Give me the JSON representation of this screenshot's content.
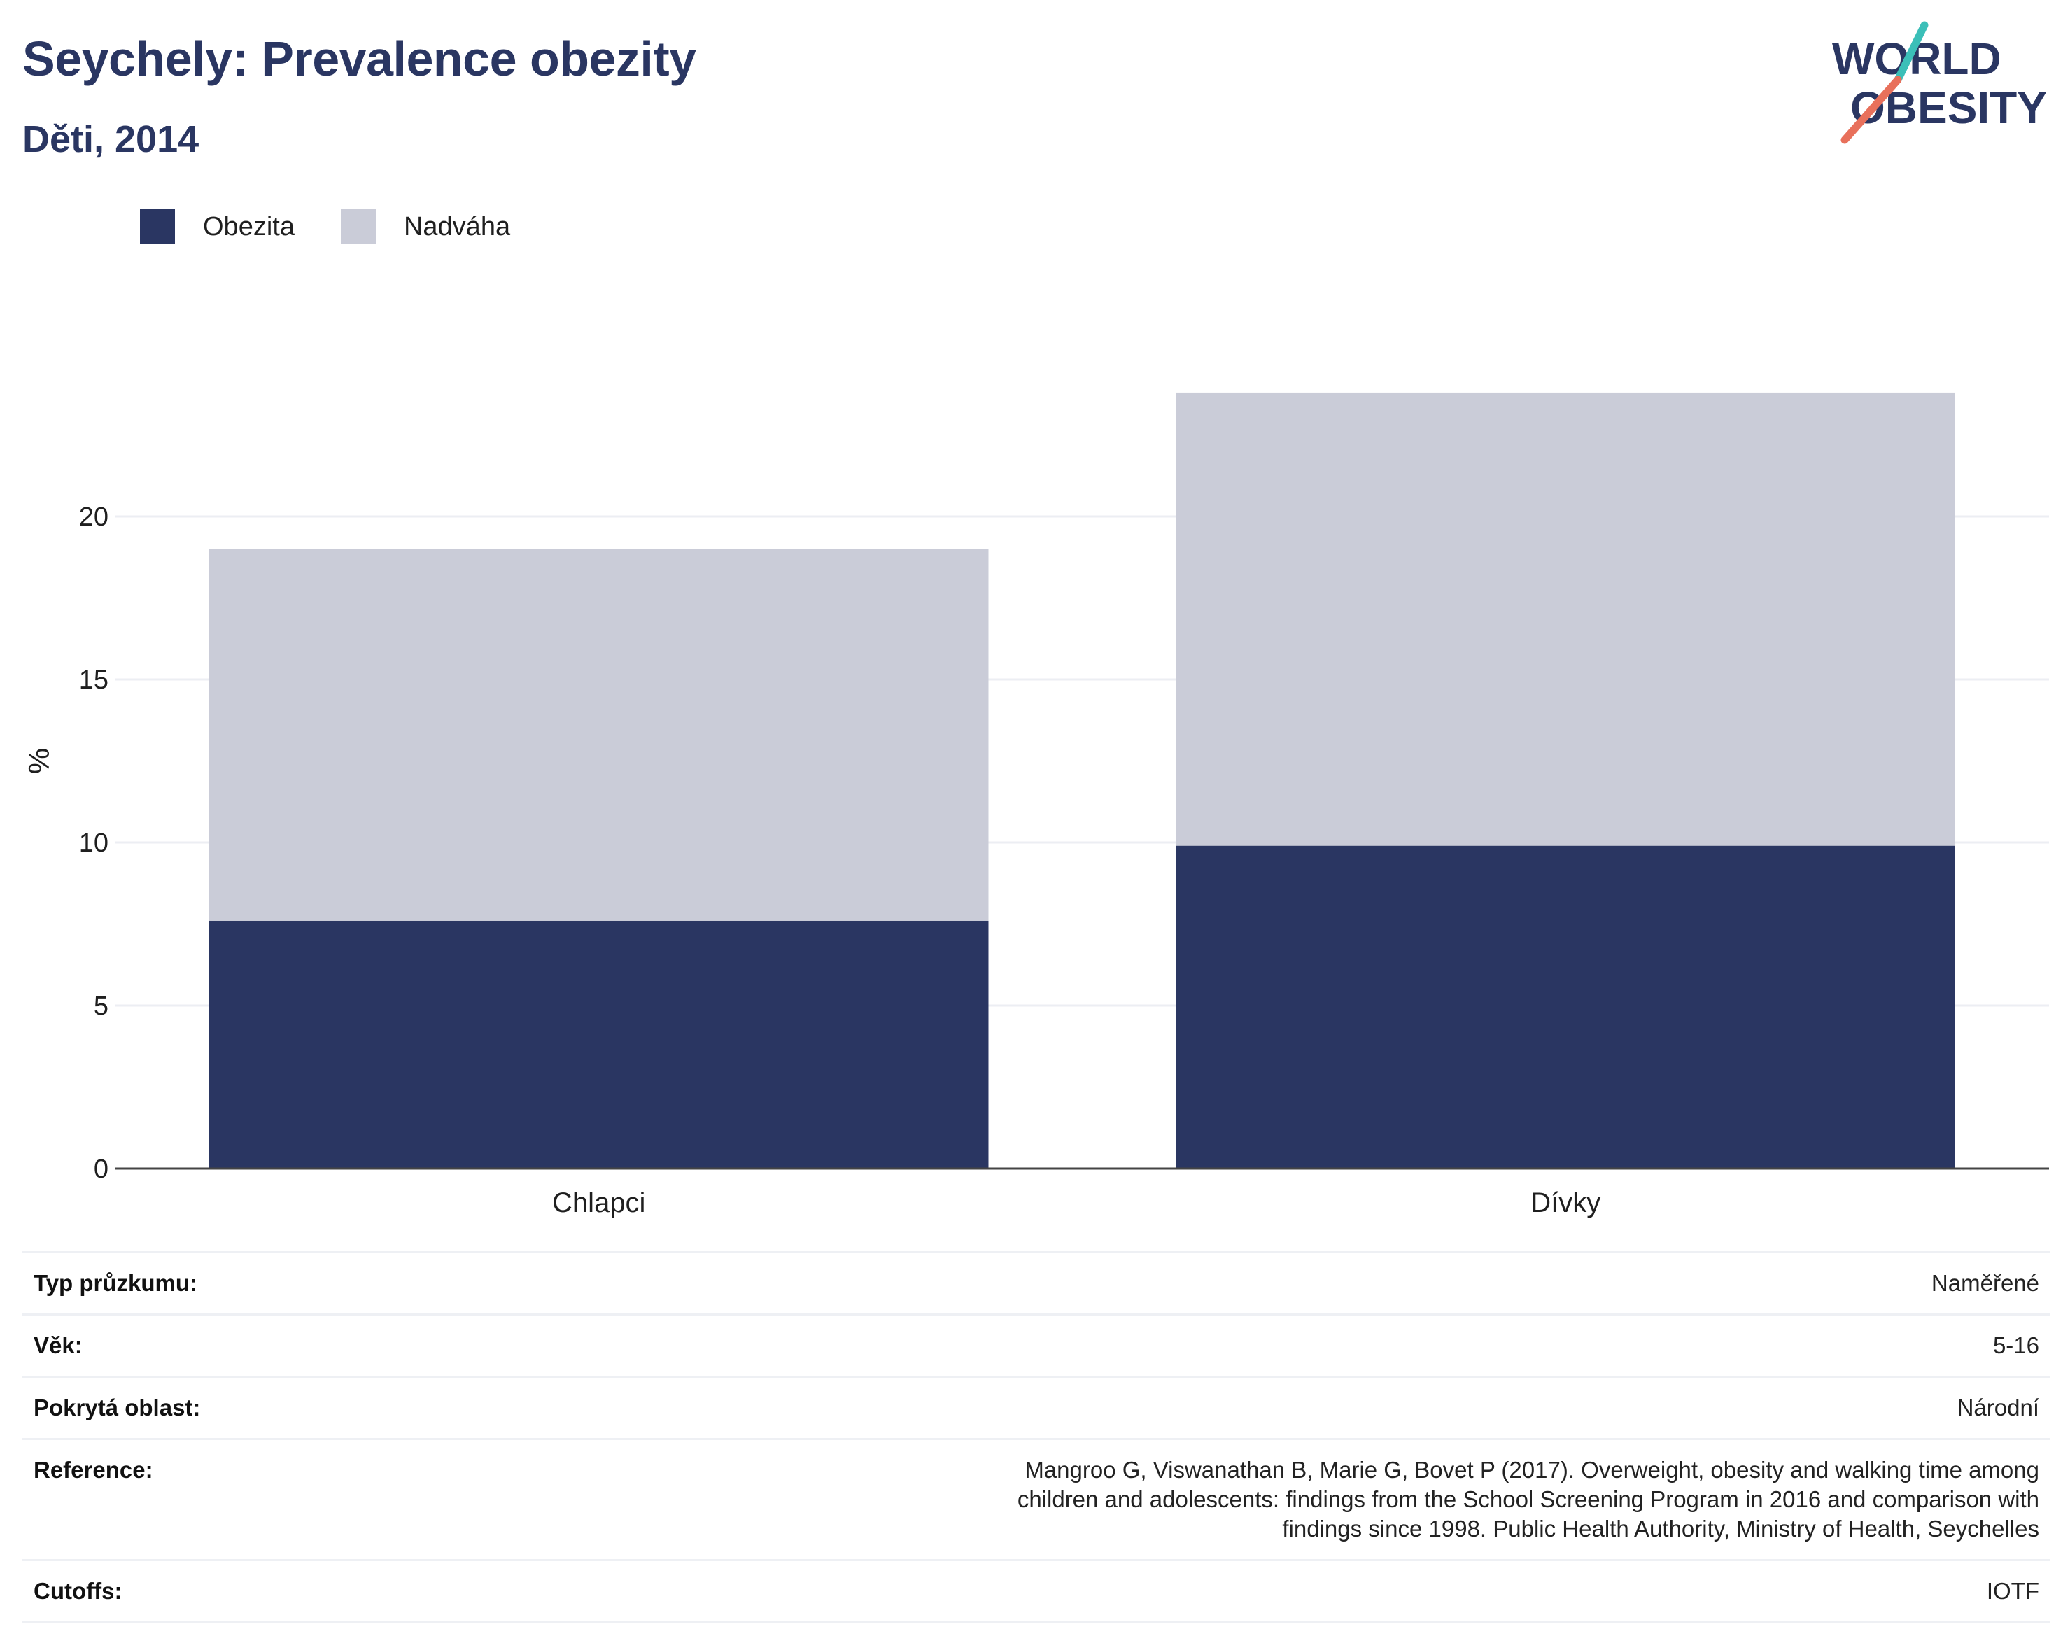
{
  "header": {
    "title": "Seychely: Prevalence obezity",
    "subtitle": "Děti, 2014"
  },
  "logo": {
    "line1": "WORLD",
    "line2": "OBESITY",
    "colors": {
      "text": "#2a3662",
      "slash_top": "#3bbfb8",
      "slash_bottom": "#e8705b"
    }
  },
  "legend": {
    "items": [
      {
        "label": "Obezita",
        "color": "#2a3662"
      },
      {
        "label": "Nadváha",
        "color": "#caccd8"
      }
    ]
  },
  "chart_data": {
    "type": "bar",
    "stacked": true,
    "categories": [
      "Chlapci",
      "Dívky"
    ],
    "series": [
      {
        "name": "Obezita",
        "color": "#2a3662",
        "values": [
          7.6,
          9.9
        ]
      },
      {
        "name": "Nadváha",
        "color": "#caccd8",
        "values": [
          11.4,
          13.9
        ]
      }
    ],
    "ylabel": "%",
    "yticks": [
      0,
      5,
      10,
      15,
      20
    ],
    "ylim": [
      0,
      25
    ],
    "grid": true,
    "legend_position": "top-left"
  },
  "meta": {
    "rows": [
      {
        "label": "Typ průzkumu:",
        "value": "Naměřené"
      },
      {
        "label": "Věk:",
        "value": "5-16"
      },
      {
        "label": "Pokrytá oblast:",
        "value": "Národní"
      },
      {
        "label": "Reference:",
        "value": "Mangroo G, Viswanathan B, Marie G, Bovet P (2017). Overweight, obesity and walking time among children and adolescents: findings from the School Screening Program in 2016 and comparison with findings since 1998. Public Health Authority, Ministry of Health, Seychelles"
      },
      {
        "label": "Cutoffs:",
        "value": "IOTF"
      }
    ]
  }
}
